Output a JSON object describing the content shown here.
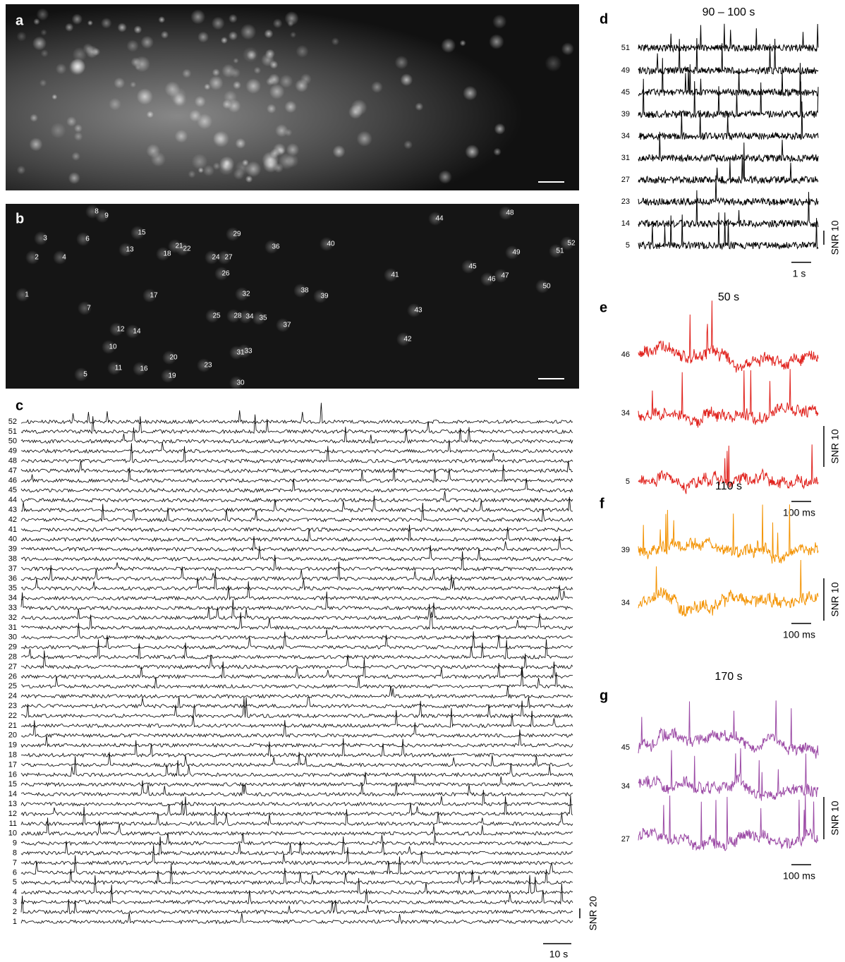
{
  "panel_a": {
    "label": "a"
  },
  "panel_b": {
    "label": "b",
    "cells": [
      "8",
      "9",
      "3",
      "6",
      "15",
      "21",
      "29",
      "24",
      "27",
      "26",
      "36",
      "40",
      "44",
      "48",
      "49",
      "51",
      "52",
      "13",
      "18",
      "22",
      "2",
      "4",
      "1",
      "17",
      "7",
      "32",
      "38",
      "39",
      "41",
      "45",
      "46",
      "47",
      "50",
      "43",
      "25",
      "28",
      "34",
      "35",
      "37",
      "12",
      "14",
      "42",
      "10",
      "31",
      "33",
      "20",
      "11",
      "16",
      "23",
      "5",
      "19",
      "30"
    ]
  },
  "panel_c": {
    "label": "c",
    "rows": [
      "52",
      "51",
      "50",
      "49",
      "48",
      "47",
      "46",
      "45",
      "44",
      "43",
      "42",
      "41",
      "40",
      "39",
      "38",
      "37",
      "36",
      "35",
      "34",
      "33",
      "32",
      "31",
      "30",
      "29",
      "28",
      "27",
      "26",
      "25",
      "24",
      "23",
      "22",
      "21",
      "20",
      "19",
      "18",
      "17",
      "16",
      "15",
      "14",
      "13",
      "12",
      "11",
      "10",
      "9",
      "8",
      "7",
      "6",
      "5",
      "4",
      "3",
      "2",
      "1"
    ],
    "amplitude_scale": "SNR 20",
    "time_scale": "10 s"
  },
  "panel_d": {
    "label": "d",
    "title": "90 – 100 s",
    "rows": [
      "51",
      "49",
      "45",
      "39",
      "34",
      "31",
      "27",
      "23",
      "14",
      "5"
    ],
    "time_scale": "1 s",
    "amplitude_scale": "SNR 10"
  },
  "panel_e": {
    "label": "e",
    "title": "50 s",
    "rows": [
      "46",
      "34",
      "5"
    ],
    "time_scale": "100 ms",
    "amplitude_scale": "SNR 10"
  },
  "panel_f": {
    "label": "f",
    "title": "110 s",
    "rows": [
      "39",
      "34"
    ],
    "time_scale": "100 ms",
    "amplitude_scale": "SNR 10"
  },
  "panel_g": {
    "label": "g",
    "title": "170 s",
    "rows": [
      "45",
      "34",
      "27"
    ],
    "time_scale": "100 ms",
    "amplitude_scale": "SNR 10"
  }
}
